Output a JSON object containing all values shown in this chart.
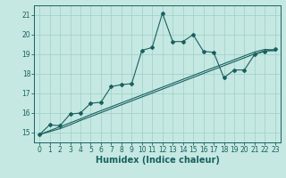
{
  "xlabel": "Humidex (Indice chaleur)",
  "xlim": [
    -0.5,
    23.5
  ],
  "ylim": [
    14.5,
    21.5
  ],
  "yticks": [
    15,
    16,
    17,
    18,
    19,
    20,
    21
  ],
  "xticks": [
    0,
    1,
    2,
    3,
    4,
    5,
    6,
    7,
    8,
    9,
    10,
    11,
    12,
    13,
    14,
    15,
    16,
    17,
    18,
    19,
    20,
    21,
    22,
    23
  ],
  "bg_color": "#c5e8e2",
  "grid_color": "#9ecfc7",
  "line_color": "#1a6060",
  "line1_x": [
    0,
    1,
    2,
    3,
    4,
    5,
    6,
    7,
    8,
    9,
    10,
    11,
    12,
    13,
    14,
    15,
    16,
    17,
    18,
    19,
    20,
    21,
    22,
    23
  ],
  "line1_y": [
    14.9,
    15.4,
    15.35,
    15.95,
    16.0,
    16.5,
    16.55,
    17.35,
    17.45,
    17.5,
    19.2,
    19.35,
    21.1,
    19.65,
    19.65,
    20.0,
    19.15,
    19.1,
    17.8,
    18.2,
    18.2,
    19.0,
    19.15,
    19.25
  ],
  "line2_x": [
    0,
    1,
    2,
    3,
    4,
    5,
    6,
    7,
    8,
    9,
    10,
    11,
    12,
    13,
    14,
    15,
    16,
    17,
    18,
    19,
    20,
    21,
    22,
    23
  ],
  "line2_y": [
    14.9,
    15.1,
    15.3,
    15.5,
    15.7,
    15.92,
    16.12,
    16.32,
    16.52,
    16.72,
    16.92,
    17.12,
    17.32,
    17.52,
    17.72,
    17.92,
    18.12,
    18.32,
    18.52,
    18.72,
    18.92,
    19.12,
    19.25,
    19.22
  ],
  "line3_x": [
    0,
    1,
    2,
    3,
    4,
    5,
    6,
    7,
    8,
    9,
    10,
    11,
    12,
    13,
    14,
    15,
    16,
    17,
    18,
    19,
    20,
    21,
    22,
    23
  ],
  "line3_y": [
    14.9,
    15.05,
    15.2,
    15.4,
    15.62,
    15.82,
    16.02,
    16.22,
    16.42,
    16.62,
    16.82,
    17.02,
    17.22,
    17.42,
    17.62,
    17.82,
    18.02,
    18.22,
    18.42,
    18.62,
    18.82,
    19.02,
    19.18,
    19.18
  ],
  "font_size": 5.5,
  "label_font_size": 7
}
